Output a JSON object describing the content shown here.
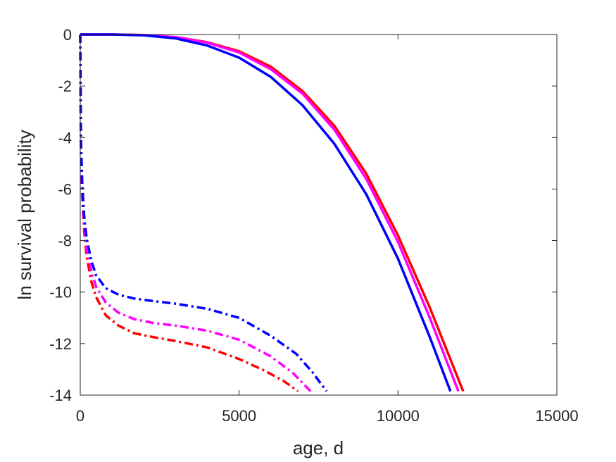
{
  "chart_data": {
    "type": "line",
    "title": "",
    "xlabel": "age, d",
    "ylabel": "ln survival probability",
    "xlim": [
      0,
      15000
    ],
    "ylim": [
      -14,
      0
    ],
    "xticks": [
      0,
      5000,
      10000,
      15000
    ],
    "yticks": [
      0,
      -2,
      -4,
      -6,
      -8,
      -10,
      -12,
      -14
    ],
    "xtick_labels": [
      "0",
      "5000",
      "10000",
      "15000"
    ],
    "ytick_labels": [
      "0",
      "-2",
      "-4",
      "-6",
      "-8",
      "-10",
      "-12",
      "-14"
    ],
    "grid": false,
    "legend": "none",
    "series": [
      {
        "color": "#ff0000",
        "style": "solid",
        "x": [
          0,
          1000,
          2000,
          3000,
          4000,
          5000,
          6000,
          7000,
          8000,
          9000,
          10000,
          11000,
          12050
        ],
        "y": [
          0,
          0,
          -0.02,
          -0.1,
          -0.3,
          -0.65,
          -1.25,
          -2.2,
          -3.55,
          -5.4,
          -7.8,
          -10.6,
          -13.85
        ]
      },
      {
        "color": "#ff00ff",
        "style": "solid",
        "x": [
          0,
          1000,
          2000,
          3000,
          4000,
          5000,
          6000,
          7000,
          8000,
          9000,
          10000,
          11000,
          11900
        ],
        "y": [
          0,
          0,
          -0.02,
          -0.1,
          -0.32,
          -0.7,
          -1.35,
          -2.3,
          -3.7,
          -5.6,
          -8.05,
          -11.0,
          -13.85
        ]
      },
      {
        "color": "#0000ff",
        "style": "solid",
        "x": [
          0,
          1000,
          2000,
          3000,
          4000,
          5000,
          6000,
          7000,
          8000,
          9000,
          10000,
          11000,
          11650
        ],
        "y": [
          0,
          0,
          -0.03,
          -0.15,
          -0.43,
          -0.9,
          -1.65,
          -2.75,
          -4.25,
          -6.2,
          -8.7,
          -11.75,
          -13.85
        ]
      },
      {
        "color": "#ff0000",
        "style": "dashdot",
        "x": [
          0,
          20,
          60,
          120,
          200,
          350,
          500,
          800,
          1200,
          1700,
          2300,
          3000,
          4000,
          5000,
          5800,
          6400,
          6850
        ],
        "y": [
          0,
          -4.5,
          -6.3,
          -7.6,
          -8.6,
          -9.6,
          -10.2,
          -10.9,
          -11.3,
          -11.6,
          -11.75,
          -11.9,
          -12.15,
          -12.6,
          -13.05,
          -13.45,
          -13.85
        ]
      },
      {
        "color": "#ff00ff",
        "style": "dashdot",
        "x": [
          0,
          20,
          60,
          120,
          200,
          350,
          500,
          800,
          1200,
          1700,
          2300,
          3000,
          4000,
          5000,
          6000,
          6700,
          7250
        ],
        "y": [
          0,
          -4.3,
          -6.1,
          -7.3,
          -8.3,
          -9.2,
          -9.8,
          -10.4,
          -10.8,
          -11.05,
          -11.2,
          -11.3,
          -11.5,
          -11.85,
          -12.5,
          -13.15,
          -13.85
        ]
      },
      {
        "color": "#0000ff",
        "style": "dashdot",
        "x": [
          0,
          20,
          60,
          120,
          200,
          350,
          500,
          800,
          1200,
          1700,
          2300,
          3000,
          4000,
          5000,
          6000,
          6800,
          7300,
          7750
        ],
        "y": [
          0,
          -4.0,
          -5.7,
          -7.0,
          -7.9,
          -8.8,
          -9.35,
          -9.85,
          -10.1,
          -10.25,
          -10.35,
          -10.45,
          -10.65,
          -11.0,
          -11.7,
          -12.4,
          -13.1,
          -13.85
        ]
      }
    ]
  }
}
